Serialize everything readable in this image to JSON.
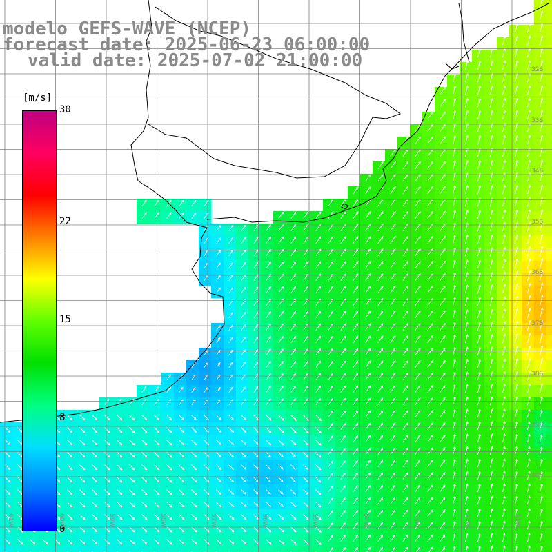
{
  "title": {
    "line1": "modelo GEFS-WAVE (NCEP)",
    "line2": "forecast date: 2025-06-23 06:00:00",
    "line3": "valid date: 2025-07-02 21:00:00"
  },
  "colorbar": {
    "unit": "[m/s]",
    "ticks": [
      {
        "value": 30,
        "label": "30"
      },
      {
        "value": 22,
        "label": "22"
      },
      {
        "value": 15,
        "label": "15"
      },
      {
        "value": 8,
        "label": "8"
      },
      {
        "value": 0,
        "label": "0"
      }
    ],
    "colors": [
      "#0000ff",
      "#0080ff",
      "#00e0ff",
      "#00ff80",
      "#00e000",
      "#60ff00",
      "#ffff00",
      "#ff8000",
      "#ff0000",
      "#ff0060",
      "#c00080"
    ]
  },
  "latitude_labels": [
    "32S",
    "33S",
    "34S",
    "35S",
    "36S",
    "37S",
    "38S",
    "39S",
    "40S"
  ],
  "longitude_labels": [
    "61W",
    "60W",
    "59W",
    "58W",
    "57W",
    "56W",
    "55W",
    "54W",
    "53W",
    "52W",
    "51W"
  ],
  "colors": {
    "background": "#ffffff",
    "grid": "#808080",
    "coast": "#000000",
    "arrows": "#ffffff",
    "title_text": "#8a8a8a"
  }
}
